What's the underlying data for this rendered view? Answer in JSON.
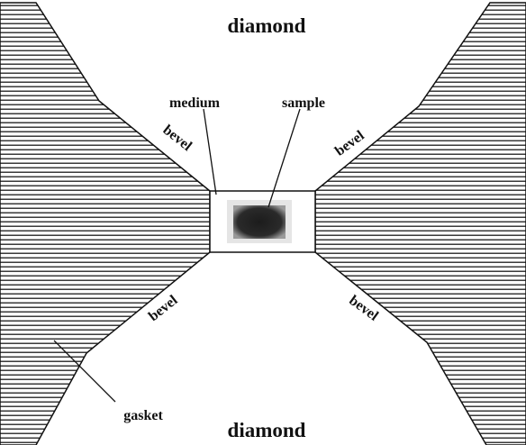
{
  "labels": {
    "diamond_top": "diamond",
    "diamond_bottom": "diamond",
    "medium": "medium",
    "sample": "sample",
    "bevel_upper_left": "bevel",
    "bevel_upper_right": "bevel",
    "bevel_lower_left": "bevel",
    "bevel_lower_right": "bevel",
    "gasket": "gasket"
  },
  "colors": {
    "hatch": "#1a1a1a",
    "outline": "#111111",
    "sample": "#2a2a2a",
    "background": "#ffffff"
  }
}
